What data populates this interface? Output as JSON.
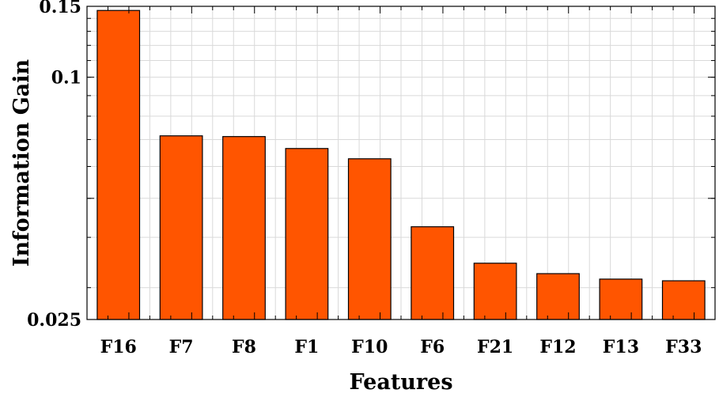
{
  "chart_data": {
    "type": "bar",
    "title": "",
    "xlabel": "Features",
    "ylabel": "Information Gain",
    "categories": [
      "F16",
      "F7",
      "F8",
      "F1",
      "F10",
      "F6",
      "F21",
      "F12",
      "F13",
      "F33"
    ],
    "values": [
      0.1465,
      0.0715,
      0.0712,
      0.0665,
      0.0627,
      0.0425,
      0.0345,
      0.0325,
      0.0315,
      0.0312
    ],
    "ylim": [
      0.025,
      0.15
    ],
    "yticks": [
      0.025,
      0.1,
      0.15
    ],
    "ytick_labels": [
      "0.025",
      "0.1",
      "0.15"
    ],
    "grid": true,
    "bar_color": "#ff5500"
  }
}
